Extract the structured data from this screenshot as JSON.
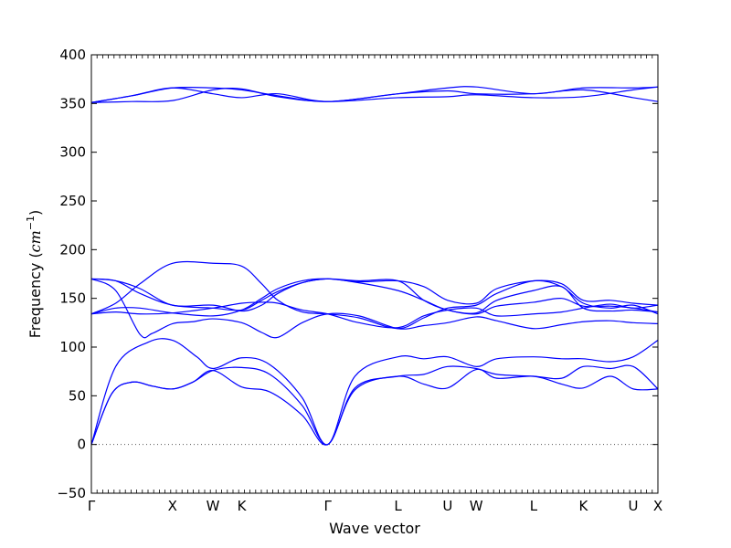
{
  "chart_data": {
    "type": "line",
    "xlabel": "Wave vector",
    "ylabel_prefix": "Frequency (",
    "ylabel_unit": "cm",
    "ylabel_exp": "−1",
    "ylabel_suffix": ")",
    "ylim": [
      -50,
      400
    ],
    "yticks": [
      -50,
      0,
      50,
      100,
      150,
      200,
      250,
      300,
      350,
      400
    ],
    "xlim": [
      0,
      6.987
    ],
    "x_ticks": [
      {
        "label": "Γ",
        "x": 0
      },
      {
        "label": "X",
        "x": 1.0
      },
      {
        "label": "W",
        "x": 1.5
      },
      {
        "label": "K",
        "x": 1.854
      },
      {
        "label": "Γ",
        "x": 2.915
      },
      {
        "label": "L",
        "x": 3.781
      },
      {
        "label": "U",
        "x": 4.393
      },
      {
        "label": "W",
        "x": 4.747
      },
      {
        "label": "L",
        "x": 5.454
      },
      {
        "label": "K",
        "x": 6.067
      },
      {
        "label": "U",
        "x": 6.683
      },
      {
        "label": "X",
        "x": 6.987
      }
    ],
    "zero_line": true,
    "line_color": "#0000ff",
    "series": [
      {
        "values": [
          [
            0,
            0
          ],
          [
            0.25,
            52
          ],
          [
            0.5,
            64
          ],
          [
            0.75,
            60
          ],
          [
            1.0,
            57
          ],
          [
            1.25,
            64
          ],
          [
            1.5,
            76
          ],
          [
            1.854,
            59
          ],
          [
            2.2,
            54
          ],
          [
            2.6,
            30
          ],
          [
            2.915,
            0
          ],
          [
            3.25,
            56
          ],
          [
            3.781,
            70
          ],
          [
            4.1,
            62
          ],
          [
            4.393,
            58
          ],
          [
            4.747,
            77
          ],
          [
            5.0,
            68
          ],
          [
            5.454,
            70
          ],
          [
            5.8,
            62
          ],
          [
            6.067,
            58
          ],
          [
            6.4,
            70
          ],
          [
            6.683,
            57
          ],
          [
            6.987,
            57
          ]
        ]
      },
      {
        "values": [
          [
            0,
            0
          ],
          [
            0.25,
            52
          ],
          [
            0.5,
            64
          ],
          [
            0.75,
            60
          ],
          [
            1.0,
            57
          ],
          [
            1.25,
            64
          ],
          [
            1.5,
            76
          ],
          [
            1.854,
            79
          ],
          [
            2.2,
            72
          ],
          [
            2.6,
            40
          ],
          [
            2.915,
            0
          ],
          [
            3.25,
            58
          ],
          [
            3.781,
            70
          ],
          [
            4.1,
            72
          ],
          [
            4.393,
            80
          ],
          [
            4.747,
            78
          ],
          [
            5.0,
            72
          ],
          [
            5.454,
            70
          ],
          [
            5.8,
            68
          ],
          [
            6.067,
            80
          ],
          [
            6.4,
            78
          ],
          [
            6.683,
            80
          ],
          [
            6.987,
            57
          ]
        ]
      },
      {
        "values": [
          [
            0,
            0
          ],
          [
            0.3,
            80
          ],
          [
            0.7,
            105
          ],
          [
            1.0,
            107
          ],
          [
            1.3,
            90
          ],
          [
            1.5,
            78
          ],
          [
            1.854,
            89
          ],
          [
            2.2,
            82
          ],
          [
            2.6,
            48
          ],
          [
            2.915,
            0
          ],
          [
            3.25,
            70
          ],
          [
            3.781,
            90
          ],
          [
            4.1,
            88
          ],
          [
            4.393,
            90
          ],
          [
            4.747,
            80
          ],
          [
            5.0,
            88
          ],
          [
            5.454,
            90
          ],
          [
            5.8,
            88
          ],
          [
            6.067,
            88
          ],
          [
            6.4,
            85
          ],
          [
            6.683,
            90
          ],
          [
            6.987,
            107
          ]
        ]
      },
      {
        "values": [
          [
            0,
            170
          ],
          [
            0.3,
            158
          ],
          [
            0.6,
            113
          ],
          [
            0.75,
            114
          ],
          [
            1.0,
            124
          ],
          [
            1.25,
            126
          ],
          [
            1.5,
            129
          ],
          [
            1.854,
            125
          ],
          [
            2.1,
            115
          ],
          [
            2.3,
            110
          ],
          [
            2.6,
            125
          ],
          [
            2.915,
            134
          ],
          [
            3.3,
            132
          ],
          [
            3.781,
            119
          ],
          [
            4.1,
            122
          ],
          [
            4.393,
            125
          ],
          [
            4.747,
            131
          ],
          [
            5.0,
            127
          ],
          [
            5.454,
            119
          ],
          [
            5.8,
            123
          ],
          [
            6.067,
            126
          ],
          [
            6.4,
            127
          ],
          [
            6.683,
            125
          ],
          [
            6.987,
            124
          ]
        ]
      },
      {
        "values": [
          [
            0,
            134
          ],
          [
            0.3,
            145
          ],
          [
            0.6,
            165
          ],
          [
            1.0,
            186
          ],
          [
            1.5,
            186
          ],
          [
            1.854,
            183
          ],
          [
            2.1,
            165
          ],
          [
            2.3,
            148
          ],
          [
            2.6,
            136
          ],
          [
            2.915,
            134
          ],
          [
            3.3,
            130
          ],
          [
            3.781,
            119
          ],
          [
            4.1,
            130
          ],
          [
            4.393,
            140
          ],
          [
            4.747,
            143
          ],
          [
            5.0,
            155
          ],
          [
            5.454,
            168
          ],
          [
            5.8,
            162
          ],
          [
            6.067,
            145
          ],
          [
            6.4,
            140
          ],
          [
            6.683,
            143
          ],
          [
            6.987,
            134
          ]
        ]
      },
      {
        "values": [
          [
            0,
            134
          ],
          [
            0.3,
            140
          ],
          [
            0.6,
            140
          ],
          [
            1.0,
            135
          ],
          [
            1.5,
            132
          ],
          [
            1.854,
            138
          ],
          [
            2.1,
            150
          ],
          [
            2.3,
            160
          ],
          [
            2.6,
            168
          ],
          [
            2.915,
            170
          ],
          [
            3.3,
            166
          ],
          [
            3.781,
            158
          ],
          [
            4.1,
            148
          ],
          [
            4.393,
            138
          ],
          [
            4.747,
            135
          ],
          [
            5.0,
            148
          ],
          [
            5.454,
            158
          ],
          [
            5.8,
            162
          ],
          [
            6.067,
            140
          ],
          [
            6.4,
            137
          ],
          [
            6.683,
            138
          ],
          [
            6.987,
            136
          ]
        ]
      },
      {
        "values": [
          [
            0,
            170
          ],
          [
            0.3,
            168
          ],
          [
            0.6,
            155
          ],
          [
            1.0,
            143
          ],
          [
            1.5,
            140
          ],
          [
            1.854,
            138
          ],
          [
            2.1,
            148
          ],
          [
            2.3,
            157
          ],
          [
            2.6,
            166
          ],
          [
            2.915,
            170
          ],
          [
            3.3,
            167
          ],
          [
            3.781,
            168
          ],
          [
            4.1,
            162
          ],
          [
            4.393,
            148
          ],
          [
            4.747,
            145
          ],
          [
            5.0,
            160
          ],
          [
            5.454,
            168
          ],
          [
            5.8,
            165
          ],
          [
            6.067,
            148
          ],
          [
            6.4,
            148
          ],
          [
            6.683,
            145
          ],
          [
            6.987,
            143
          ]
        ]
      },
      {
        "values": [
          [
            0,
            134
          ],
          [
            0.3,
            136
          ],
          [
            0.6,
            134
          ],
          [
            1.0,
            135
          ],
          [
            1.5,
            140
          ],
          [
            1.854,
            145
          ],
          [
            2.1,
            146
          ],
          [
            2.3,
            145
          ],
          [
            2.6,
            138
          ],
          [
            2.915,
            134
          ],
          [
            3.3,
            125
          ],
          [
            3.781,
            120
          ],
          [
            4.1,
            132
          ],
          [
            4.393,
            138
          ],
          [
            4.747,
            140
          ],
          [
            5.0,
            132
          ],
          [
            5.454,
            134
          ],
          [
            5.8,
            136
          ],
          [
            6.067,
            140
          ],
          [
            6.4,
            144
          ],
          [
            6.683,
            140
          ],
          [
            6.987,
            143
          ]
        ]
      },
      {
        "values": [
          [
            0,
            170
          ],
          [
            0.3,
            168
          ],
          [
            0.6,
            160
          ],
          [
            1.0,
            143
          ],
          [
            1.5,
            143
          ],
          [
            1.854,
            137
          ],
          [
            2.1,
            143
          ],
          [
            2.3,
            155
          ],
          [
            2.6,
            166
          ],
          [
            2.915,
            170
          ],
          [
            3.3,
            168
          ],
          [
            3.781,
            168
          ],
          [
            4.1,
            148
          ],
          [
            4.393,
            138
          ],
          [
            4.747,
            134
          ],
          [
            5.0,
            142
          ],
          [
            5.454,
            146
          ],
          [
            5.8,
            150
          ],
          [
            6.067,
            142
          ],
          [
            6.4,
            142
          ],
          [
            6.683,
            140
          ],
          [
            6.987,
            136
          ]
        ]
      },
      {
        "values": [
          [
            0,
            351
          ],
          [
            0.5,
            358
          ],
          [
            1.0,
            366
          ],
          [
            1.5,
            366
          ],
          [
            1.854,
            364
          ],
          [
            2.3,
            358
          ],
          [
            2.915,
            352
          ],
          [
            3.781,
            360
          ],
          [
            4.393,
            366
          ],
          [
            4.747,
            367
          ],
          [
            5.454,
            360
          ],
          [
            6.067,
            366
          ],
          [
            6.683,
            366
          ],
          [
            6.987,
            367
          ]
        ]
      },
      {
        "values": [
          [
            0,
            351
          ],
          [
            0.5,
            358
          ],
          [
            1.0,
            366
          ],
          [
            1.5,
            360
          ],
          [
            1.854,
            356
          ],
          [
            2.3,
            360
          ],
          [
            2.915,
            352
          ],
          [
            3.781,
            360
          ],
          [
            4.393,
            363
          ],
          [
            4.747,
            360
          ],
          [
            5.454,
            360
          ],
          [
            6.067,
            364
          ],
          [
            6.683,
            356
          ],
          [
            6.987,
            352
          ]
        ]
      },
      {
        "values": [
          [
            0,
            351
          ],
          [
            0.5,
            352
          ],
          [
            1.0,
            353
          ],
          [
            1.5,
            364
          ],
          [
            1.854,
            365
          ],
          [
            2.3,
            357
          ],
          [
            2.915,
            352
          ],
          [
            3.781,
            356
          ],
          [
            4.393,
            357
          ],
          [
            4.747,
            359
          ],
          [
            5.454,
            356
          ],
          [
            6.067,
            357
          ],
          [
            6.683,
            364
          ],
          [
            6.987,
            367
          ]
        ]
      }
    ]
  }
}
